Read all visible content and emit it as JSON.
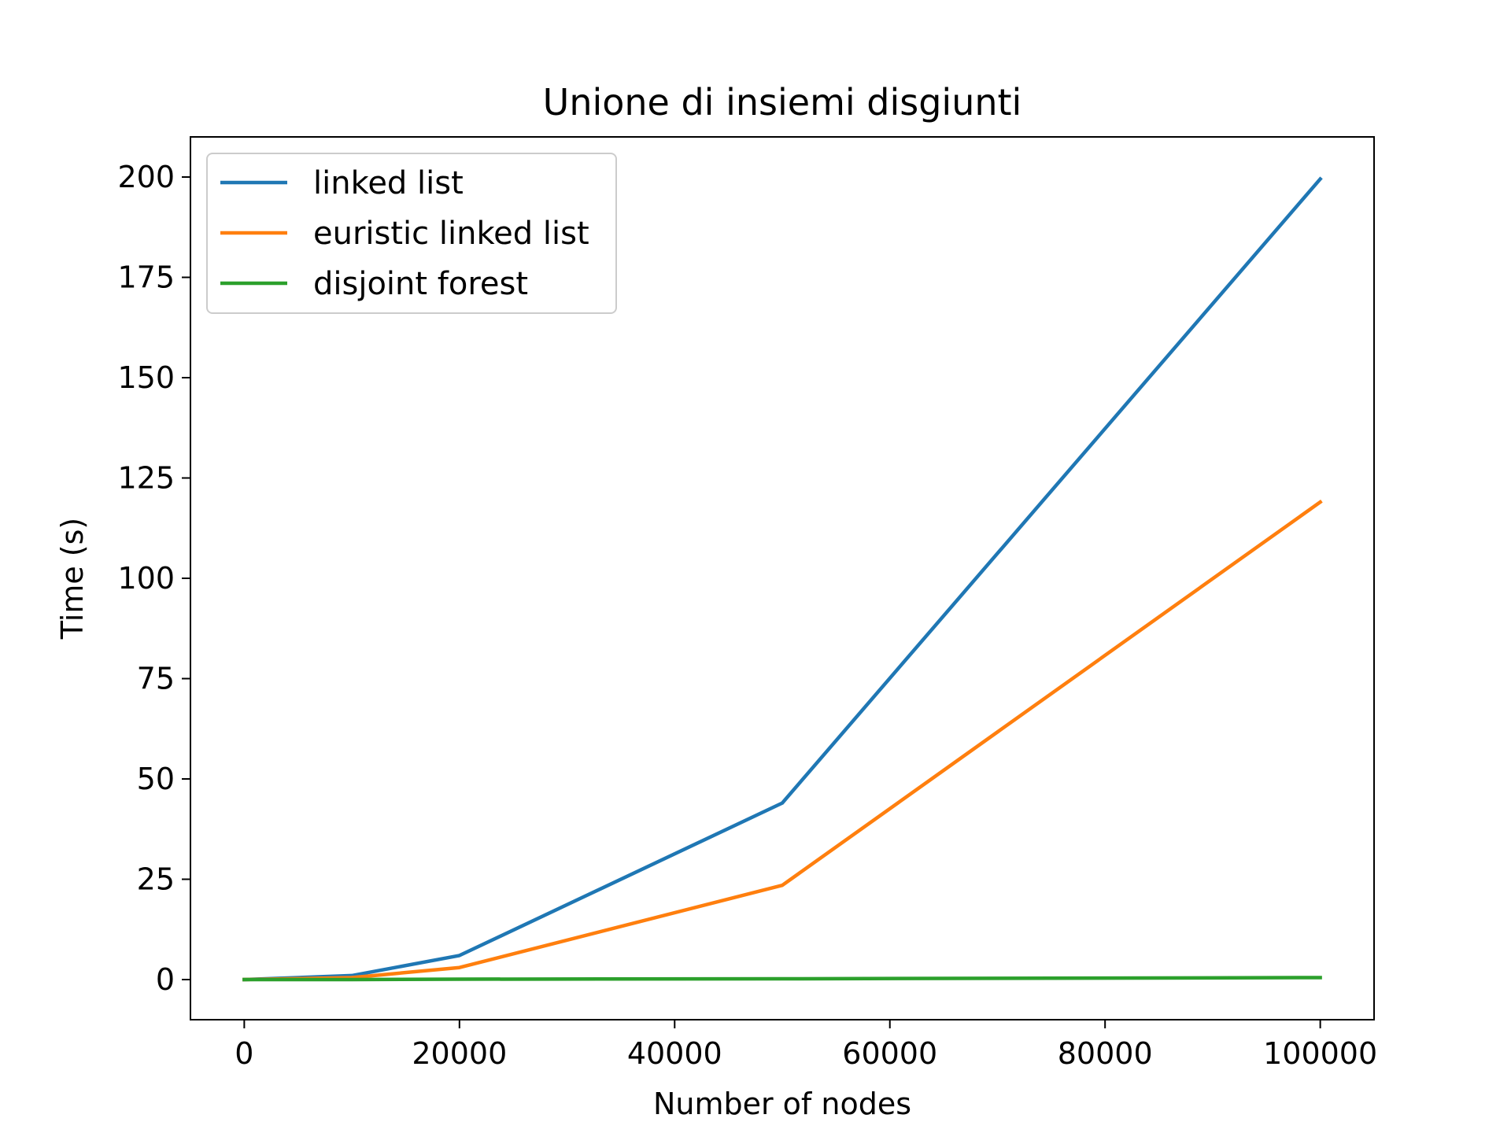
{
  "chart_data": {
    "type": "line",
    "title": "Unione di insiemi disgiunti",
    "xlabel": "Number of nodes",
    "ylabel": "Time (s)",
    "xlim": [
      -5000,
      105000
    ],
    "ylim": [
      -10,
      210
    ],
    "xticks": [
      0,
      20000,
      40000,
      60000,
      80000,
      100000
    ],
    "xtick_labels": [
      "0",
      "20000",
      "40000",
      "60000",
      "80000",
      "100000"
    ],
    "yticks": [
      0,
      25,
      50,
      75,
      100,
      125,
      150,
      175,
      200
    ],
    "ytick_labels": [
      "0",
      "25",
      "50",
      "75",
      "100",
      "125",
      "150",
      "175",
      "200"
    ],
    "grid": false,
    "legend_position": "top-left",
    "x": [
      0,
      10000,
      20000,
      50000,
      100000
    ],
    "series": [
      {
        "name": "linked list",
        "color": "#1f77b4",
        "values": [
          0,
          1,
          6,
          44,
          199.5
        ]
      },
      {
        "name": "euristic linked list",
        "color": "#ff7f0e",
        "values": [
          0,
          0.5,
          3,
          23.5,
          119
        ]
      },
      {
        "name": "disjoint forest",
        "color": "#2ca02c",
        "values": [
          0,
          0,
          0.1,
          0.2,
          0.5
        ]
      }
    ]
  }
}
